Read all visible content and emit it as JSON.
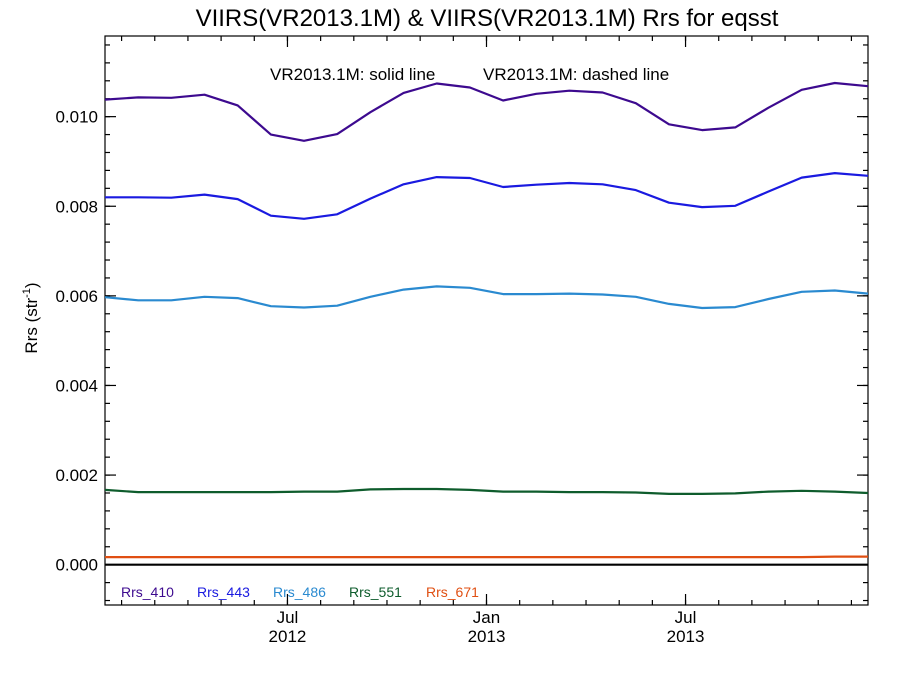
{
  "chart_data": {
    "type": "line",
    "title": "VIIRS(VR2013.1M) & VIIRS(VR2013.1M)  Rrs for eqsst",
    "ylabel": "Rrs (str",
    "ylabel_sup": "-1",
    "ylabel_close": ")",
    "xlabel": "",
    "annotation_solid": "VR2013.1M: solid line",
    "annotation_dashed": "VR2013.1M: dashed line",
    "x_unit": "month index (0 = 2012-01)",
    "xlim": [
      0,
      23
    ],
    "ylim": [
      -0.0009,
      0.0118
    ],
    "yticks": [
      0.0,
      0.002,
      0.004,
      0.006,
      0.008,
      0.01
    ],
    "ytick_labels": [
      "0.000",
      "0.002",
      "0.004",
      "0.006",
      "0.008",
      "0.010"
    ],
    "xticks": [
      {
        "x": 5.5,
        "line1": "Jul",
        "line2": "2012"
      },
      {
        "x": 11.5,
        "line1": "Jan",
        "line2": "2013"
      },
      {
        "x": 17.5,
        "line1": "Jul",
        "line2": "2013"
      }
    ],
    "x": [
      0,
      1,
      2,
      3,
      4,
      5,
      6,
      7,
      8,
      9,
      10,
      11,
      12,
      13,
      14,
      15,
      16,
      17,
      18,
      19,
      20,
      21,
      22,
      23
    ],
    "series": [
      {
        "name": "Rrs_410",
        "color": "#3d0a8f",
        "values": [
          0.01038,
          0.01043,
          0.01042,
          0.01049,
          0.01025,
          0.0096,
          0.00946,
          0.00961,
          0.0101,
          0.01053,
          0.01074,
          0.01065,
          0.01036,
          0.01051,
          0.01058,
          0.01054,
          0.0103,
          0.00983,
          0.0097,
          0.00976,
          0.0102,
          0.0106,
          0.01075,
          0.01068
        ]
      },
      {
        "name": "Rrs_443",
        "color": "#1a1ae0",
        "values": [
          0.0082,
          0.0082,
          0.00819,
          0.00826,
          0.00816,
          0.00779,
          0.00772,
          0.00782,
          0.00817,
          0.00849,
          0.00865,
          0.00863,
          0.00843,
          0.00848,
          0.00852,
          0.00849,
          0.00836,
          0.00808,
          0.00798,
          0.00801,
          0.00833,
          0.00864,
          0.00874,
          0.00868
        ]
      },
      {
        "name": "Rrs_486",
        "color": "#2a8ad0",
        "values": [
          0.00597,
          0.0059,
          0.0059,
          0.00598,
          0.00595,
          0.00577,
          0.00574,
          0.00578,
          0.00598,
          0.00614,
          0.00621,
          0.00618,
          0.00604,
          0.00604,
          0.00605,
          0.00603,
          0.00598,
          0.00582,
          0.00573,
          0.00575,
          0.00593,
          0.00609,
          0.00612,
          0.00605
        ]
      },
      {
        "name": "Rrs_551",
        "color": "#0e5c2c",
        "values": [
          0.00167,
          0.00162,
          0.00162,
          0.00162,
          0.00162,
          0.00162,
          0.00163,
          0.00163,
          0.00168,
          0.00169,
          0.00169,
          0.00167,
          0.00163,
          0.00163,
          0.00162,
          0.00162,
          0.00161,
          0.00158,
          0.00158,
          0.00159,
          0.00163,
          0.00165,
          0.00163,
          0.0016
        ]
      },
      {
        "name": "Rrs_671",
        "color": "#e04f12",
        "values": [
          0.00017,
          0.00017,
          0.00017,
          0.00017,
          0.00017,
          0.00017,
          0.00017,
          0.00017,
          0.00017,
          0.00017,
          0.00017,
          0.00017,
          0.00017,
          0.00017,
          0.00017,
          0.00017,
          0.00017,
          0.00017,
          0.00017,
          0.00017,
          0.00017,
          0.00017,
          0.00018,
          0.00018
        ]
      }
    ],
    "zero_line": 0.0
  }
}
